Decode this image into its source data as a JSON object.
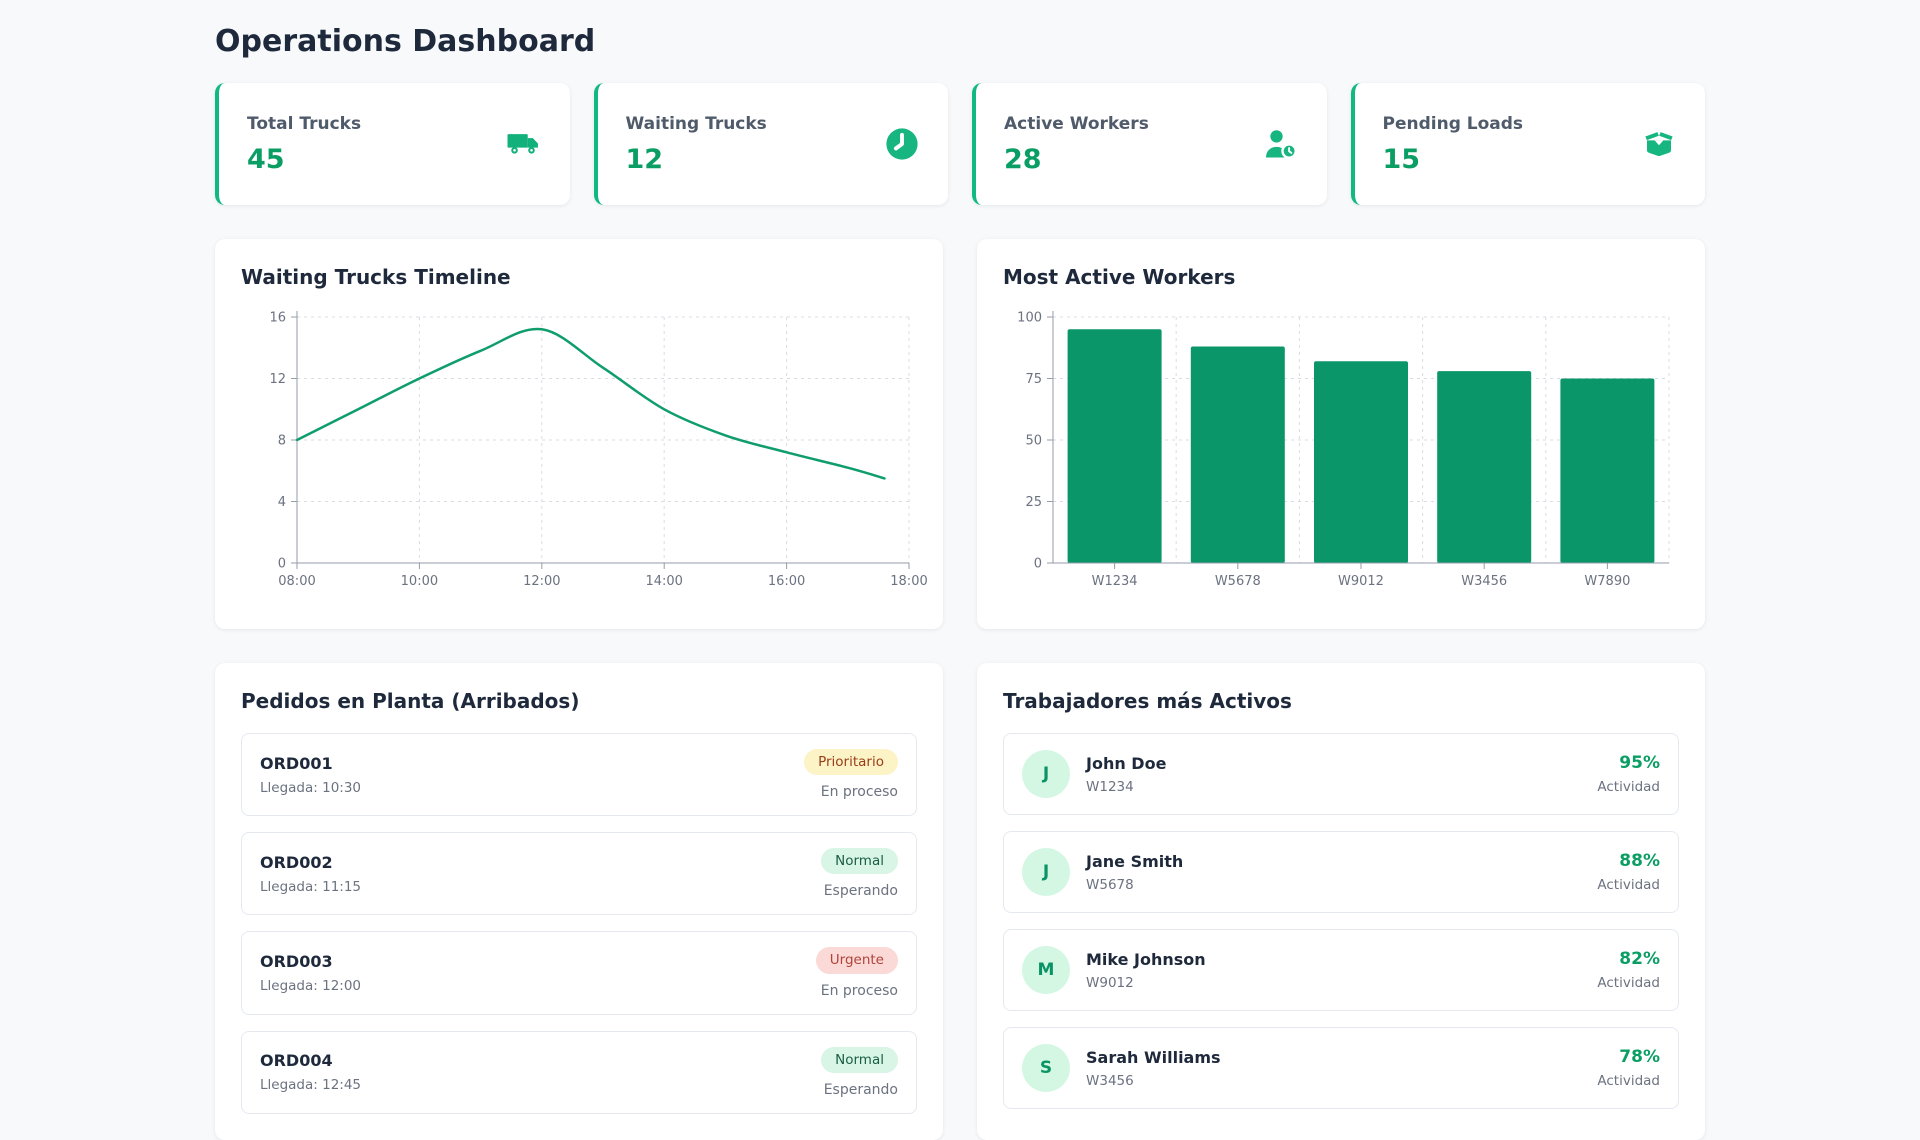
{
  "header": {
    "title": "Operations Dashboard"
  },
  "theme": {
    "accent_green": "#10b981",
    "value_green": "#0a9e64",
    "page_background": "#f7f9fb",
    "card_background": "#ffffff",
    "muted_text": "#6b7280"
  },
  "stats": [
    {
      "label": "Total Trucks",
      "value": "45",
      "icon": "truck-icon"
    },
    {
      "label": "Waiting Trucks",
      "value": "12",
      "icon": "clock-icon"
    },
    {
      "label": "Active Workers",
      "value": "28",
      "icon": "worker-clock-icon"
    },
    {
      "label": "Pending Loads",
      "value": "15",
      "icon": "open-box-icon"
    }
  ],
  "chart_data": [
    {
      "type": "line",
      "title": "Waiting Trucks Timeline",
      "x_hours": [
        8,
        9,
        10,
        11,
        12,
        13,
        14,
        15,
        16,
        17,
        17.6
      ],
      "values": [
        8,
        10,
        12,
        13.8,
        15.2,
        12.7,
        10,
        8.3,
        7.2,
        6.2,
        5.5
      ],
      "x_range": [
        8,
        18
      ],
      "x_ticks": [
        {
          "h": 8,
          "label": "08:00"
        },
        {
          "h": 10,
          "label": "10:00"
        },
        {
          "h": 12,
          "label": "12:00"
        },
        {
          "h": 14,
          "label": "14:00"
        },
        {
          "h": 16,
          "label": "16:00"
        },
        {
          "h": 18,
          "label": "18:00"
        }
      ],
      "y_range": [
        0,
        16
      ],
      "y_ticks": [
        0,
        4,
        8,
        12,
        16
      ],
      "line_color": "#0f9d6c",
      "grid": "dashed",
      "legend": "none"
    },
    {
      "type": "bar",
      "title": "Most Active Workers",
      "categories": [
        "W1234",
        "W5678",
        "W9012",
        "W3456",
        "W7890"
      ],
      "values": [
        95,
        88,
        82,
        78,
        75
      ],
      "y_range": [
        0,
        100
      ],
      "y_ticks": [
        0,
        25,
        50,
        75,
        100
      ],
      "bar_color": "#0a9669",
      "grid": "dashed",
      "legend": "none"
    }
  ],
  "orders": {
    "title": "Pedidos en Planta (Arribados)",
    "items": [
      {
        "id": "ORD001",
        "arrival": "Llegada: 10:30",
        "badge": "Prioritario",
        "badge_type": "priority",
        "status": "En proceso"
      },
      {
        "id": "ORD002",
        "arrival": "Llegada: 11:15",
        "badge": "Normal",
        "badge_type": "normal",
        "status": "Esperando"
      },
      {
        "id": "ORD003",
        "arrival": "Llegada: 12:00",
        "badge": "Urgente",
        "badge_type": "urgent",
        "status": "En proceso"
      },
      {
        "id": "ORD004",
        "arrival": "Llegada: 12:45",
        "badge": "Normal",
        "badge_type": "normal",
        "status": "Esperando"
      }
    ]
  },
  "workers": {
    "title": "Trabajadores más Activos",
    "activity_label": "Actividad",
    "items": [
      {
        "initial": "J",
        "name": "John Doe",
        "id": "W1234",
        "pct": "95%"
      },
      {
        "initial": "J",
        "name": "Jane Smith",
        "id": "W5678",
        "pct": "88%"
      },
      {
        "initial": "M",
        "name": "Mike Johnson",
        "id": "W9012",
        "pct": "82%"
      },
      {
        "initial": "S",
        "name": "Sarah Williams",
        "id": "W3456",
        "pct": "78%"
      }
    ]
  }
}
